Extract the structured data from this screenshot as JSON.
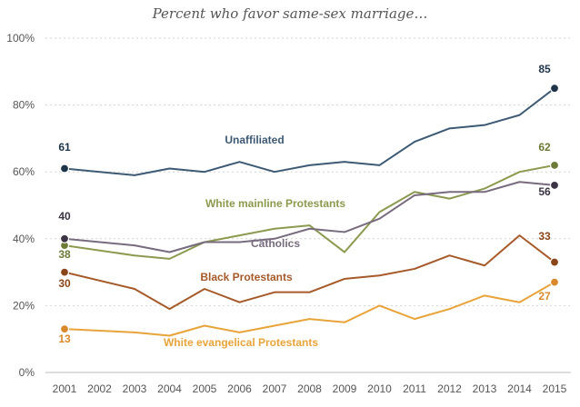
{
  "chart_data": {
    "type": "line",
    "title": "Percent who favor same-sex marriage…",
    "xlabel": "",
    "ylabel": "",
    "ylim": [
      0,
      100
    ],
    "grid": true,
    "x": [
      2001,
      2002,
      2003,
      2004,
      2005,
      2006,
      2007,
      2008,
      2009,
      2010,
      2011,
      2012,
      2013,
      2014,
      2015
    ],
    "x_tick_labels": [
      "2001",
      "2002",
      "2003",
      "2004",
      "2005",
      "2006",
      "2007",
      "2008",
      "2009",
      "2010",
      "2011",
      "2012",
      "2013",
      "2014",
      "2015"
    ],
    "y_ticks": [
      0,
      20,
      40,
      60,
      80,
      100
    ],
    "y_tick_labels": [
      "0%",
      "20%",
      "40%",
      "60%",
      "80%",
      "100%"
    ],
    "series": [
      {
        "name": "Unaffiliated",
        "color": "#3d5a74",
        "marker_color": "#1e3448",
        "values": [
          61,
          null,
          59,
          61,
          60,
          63,
          60,
          62,
          63,
          62,
          69,
          73,
          74,
          77,
          85
        ],
        "start_label": "61",
        "end_label": "85"
      },
      {
        "name": "White mainline Protestants",
        "color": "#8a9a4e",
        "marker_color": "#6b7a36",
        "values": [
          38,
          null,
          35,
          34,
          39,
          41,
          43,
          44,
          36,
          48,
          54,
          52,
          55,
          60,
          62
        ],
        "start_label": "38",
        "end_label": "62"
      },
      {
        "name": "Catholics",
        "color": "#786b7e",
        "marker_color": "#3c3444",
        "values": [
          40,
          null,
          38,
          36,
          39,
          39,
          40,
          43,
          42,
          46,
          53,
          54,
          54,
          57,
          56
        ],
        "start_label": "40",
        "end_label": "56"
      },
      {
        "name": "Black Protestants",
        "color": "#a65a2a",
        "marker_color": "#8a4519",
        "values": [
          30,
          null,
          25,
          19,
          25,
          21,
          24,
          24,
          28,
          29,
          31,
          35,
          32,
          41,
          33
        ],
        "start_label": "30",
        "end_label": "33"
      },
      {
        "name": "White evangelical Protestants",
        "color": "#e8a43a",
        "marker_color": "#d9882a",
        "values": [
          13,
          null,
          12,
          11,
          14,
          12,
          14,
          16,
          15,
          20,
          16,
          19,
          23,
          21,
          27
        ],
        "start_label": "13",
        "end_label": "27"
      }
    ]
  }
}
